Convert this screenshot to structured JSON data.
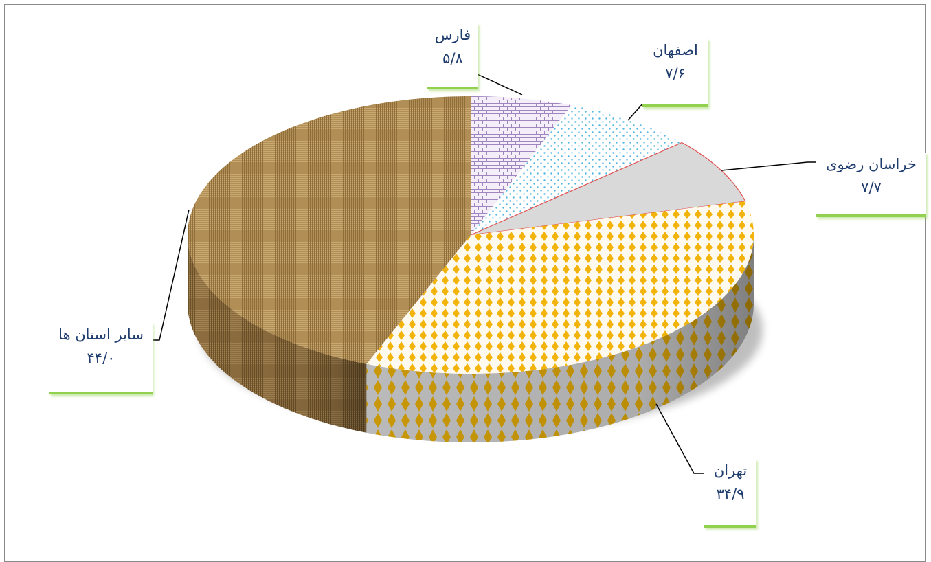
{
  "chart_data": {
    "type": "pie",
    "style": "3d",
    "slices": [
      {
        "label": "فارس",
        "value_text": "۵/۸",
        "value": 5.8,
        "color": "#b7a3cf",
        "pattern": "bricks"
      },
      {
        "label": "اصفهان",
        "value_text": "۷/۶",
        "value": 7.6,
        "color": "#4fb6e0",
        "pattern": "dots"
      },
      {
        "label": "خراسان رضوی",
        "value_text": "۷/۷",
        "value": 7.7,
        "color": "#d9d9d9",
        "pattern": "solid"
      },
      {
        "label": "تهران",
        "value_text": "۳۴/۹",
        "value": 34.9,
        "color": "#f2b30a",
        "pattern": "diamonds"
      },
      {
        "label": "سایر استان ها",
        "value_text": "۴۴/۰",
        "value": 44.0,
        "color": "#b08a4e",
        "pattern": "burlap"
      }
    ]
  }
}
